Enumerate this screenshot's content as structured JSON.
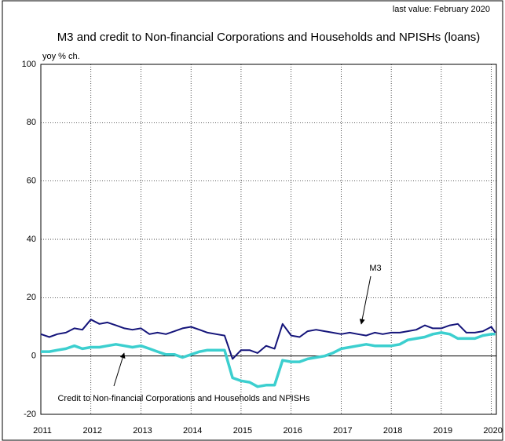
{
  "chart_data": {
    "type": "line",
    "title": "M3 and credit to Non-financial Corporations and Households and NPISHs (loans)",
    "subtitle": "last value: February 2020",
    "y_label": "yoy % ch.",
    "x": [
      2011.0,
      2011.17,
      2011.33,
      2011.5,
      2011.67,
      2011.83,
      2012.0,
      2012.17,
      2012.33,
      2012.5,
      2012.67,
      2012.83,
      2013.0,
      2013.17,
      2013.33,
      2013.5,
      2013.67,
      2013.83,
      2014.0,
      2014.17,
      2014.33,
      2014.5,
      2014.67,
      2014.83,
      2015.0,
      2015.17,
      2015.33,
      2015.5,
      2015.67,
      2015.83,
      2016.0,
      2016.17,
      2016.33,
      2016.5,
      2016.67,
      2016.83,
      2017.0,
      2017.17,
      2017.33,
      2017.5,
      2017.67,
      2017.83,
      2018.0,
      2018.17,
      2018.33,
      2018.5,
      2018.67,
      2018.83,
      2019.0,
      2019.17,
      2019.33,
      2019.5,
      2019.67,
      2019.83,
      2020.0,
      2020.08
    ],
    "series": [
      {
        "name": "M3",
        "color": "#14147a",
        "width": 2,
        "values": [
          7.5,
          6.5,
          7.5,
          8,
          9.5,
          9,
          12.5,
          11,
          11.5,
          10.5,
          9.5,
          9,
          9.5,
          7.5,
          8,
          7.5,
          8.5,
          9.5,
          10,
          9,
          8,
          7.5,
          7,
          -1,
          2,
          2,
          1,
          3.5,
          2.5,
          11,
          7,
          6.5,
          8.5,
          9,
          8.5,
          8,
          7.5,
          8,
          7.5,
          7,
          8,
          7.5,
          8,
          8,
          8.5,
          9,
          10.5,
          9.5,
          9.5,
          10.5,
          11,
          8,
          8,
          8.5,
          10,
          8
        ]
      },
      {
        "name": "Credit to Non-financial Corporations and Households and NPISHs",
        "color": "#3ccfcf",
        "width": 3.5,
        "values": [
          1.5,
          1.5,
          2,
          2.5,
          3.5,
          2.5,
          3,
          3,
          3.5,
          4,
          3.5,
          3,
          3.5,
          2.5,
          1.5,
          0.5,
          0.5,
          -0.5,
          0.5,
          1.5,
          2,
          2,
          2,
          -7.5,
          -8.5,
          -9,
          -10.5,
          -10,
          -10,
          -1.5,
          -2,
          -2,
          -1,
          -0.5,
          0,
          1,
          2.5,
          3,
          3.5,
          4,
          3.5,
          3.5,
          3.5,
          4,
          5.5,
          6,
          6.5,
          7.5,
          8,
          7.5,
          6,
          6,
          6,
          7,
          7.5,
          7.5
        ]
      }
    ],
    "xlim": [
      2011,
      2020.1
    ],
    "xticks": [
      2011,
      2012,
      2013,
      2014,
      2015,
      2016,
      2017,
      2018,
      2019,
      2020
    ],
    "ylim": [
      -20,
      100
    ],
    "yticks": [
      -20,
      0,
      20,
      40,
      60,
      80,
      100
    ],
    "grid": true
  }
}
